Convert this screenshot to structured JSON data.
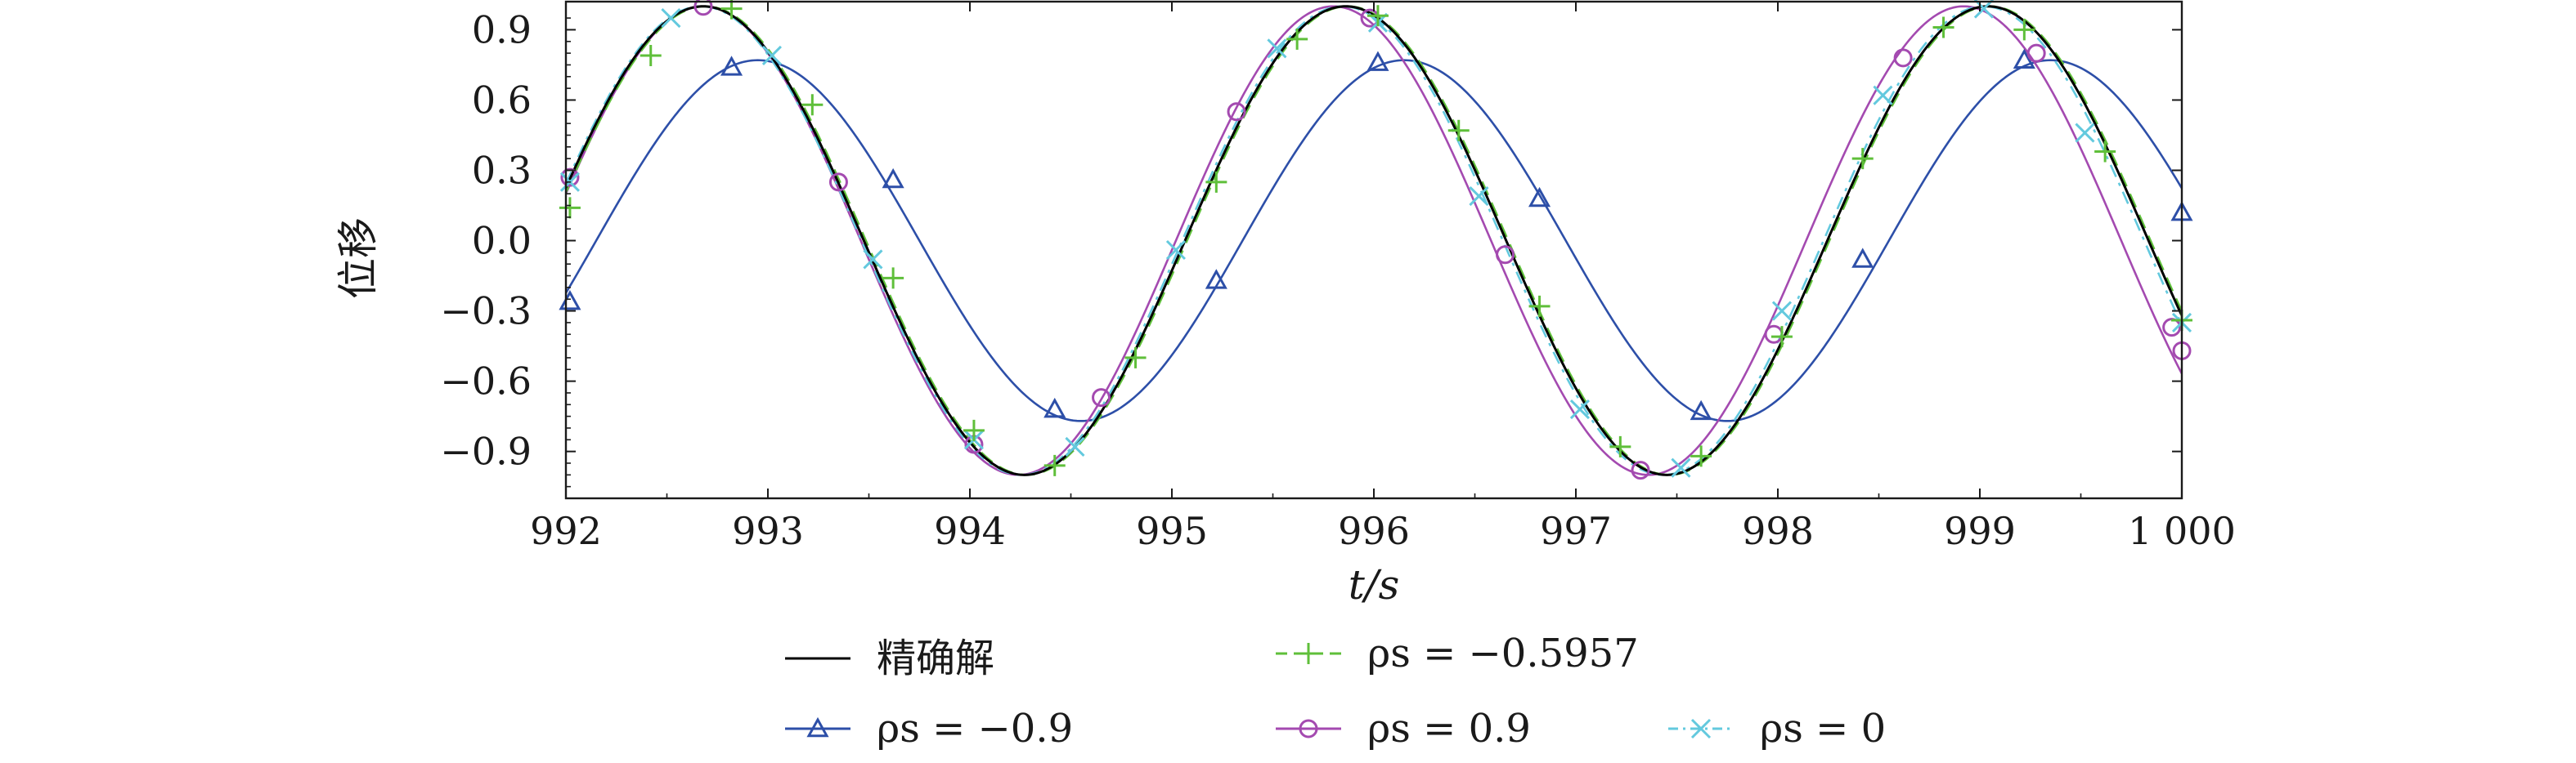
{
  "chart_data": {
    "type": "line",
    "xlabel": "t/s",
    "ylabel": "位移",
    "xlim": [
      992,
      1000
    ],
    "ylim": [
      -1.1,
      1.02
    ],
    "x_ticks": [
      992,
      993,
      994,
      995,
      996,
      997,
      998,
      999,
      1000
    ],
    "x_tick_labels": [
      "992",
      "993",
      "994",
      "995",
      "996",
      "997",
      "998",
      "999",
      "1 000"
    ],
    "y_ticks": [
      0.9,
      0.6,
      0.3,
      0.0,
      -0.3,
      -0.6,
      -0.9
    ],
    "y_tick_labels": [
      "0.9",
      "0.6",
      "0.3",
      "0.0",
      "−0.3",
      "−0.6",
      "−0.9"
    ],
    "grid": false,
    "legend_position": "bottom",
    "series": [
      {
        "name": "精确解",
        "color": "#000000",
        "line": "solid",
        "marker": "none",
        "model": {
          "amplitude": 1.0,
          "period": 3.18,
          "peak_t": 992.68
        },
        "points": [
          [
            992.0,
            0.28
          ],
          [
            992.68,
            1.0
          ],
          [
            993.47,
            0.0
          ],
          [
            994.27,
            -1.0
          ],
          [
            995.06,
            0.0
          ],
          [
            995.86,
            1.0
          ],
          [
            996.65,
            0.0
          ],
          [
            997.45,
            -1.0
          ],
          [
            998.24,
            0.0
          ],
          [
            999.04,
            1.0
          ],
          [
            999.83,
            0.0
          ],
          [
            1000.0,
            -0.32
          ]
        ]
      },
      {
        "name": "ρs = −0.5957",
        "color": "#5fbf3a",
        "line": "dashed",
        "marker": "plus",
        "model": {
          "amplitude": 1.0,
          "period": 3.18,
          "peak_t": 992.69
        },
        "marker_points": [
          [
            992.02,
            0.14
          ],
          [
            992.42,
            0.79
          ],
          [
            992.82,
            0.99
          ],
          [
            993.22,
            0.58
          ],
          [
            993.62,
            -0.16
          ],
          [
            994.02,
            -0.81
          ],
          [
            994.42,
            -0.96
          ],
          [
            994.82,
            -0.5
          ],
          [
            995.22,
            0.25
          ],
          [
            995.62,
            0.86
          ],
          [
            996.02,
            0.96
          ],
          [
            996.42,
            0.47
          ],
          [
            996.82,
            -0.28
          ],
          [
            997.22,
            -0.88
          ],
          [
            997.62,
            -0.92
          ],
          [
            998.02,
            -0.41
          ],
          [
            998.42,
            0.35
          ],
          [
            998.82,
            0.91
          ],
          [
            999.22,
            0.9
          ],
          [
            999.62,
            0.38
          ],
          [
            1000.0,
            -0.34
          ]
        ]
      },
      {
        "name": "ρs = −0.9",
        "color": "#2d4fa8",
        "line": "solid",
        "marker": "triangle",
        "model": {
          "amplitude": 0.77,
          "period": 3.2,
          "peak_t": 992.95
        },
        "marker_points": [
          [
            992.02,
            -0.26
          ],
          [
            992.82,
            0.74
          ],
          [
            993.62,
            0.26
          ],
          [
            994.42,
            -0.72
          ],
          [
            995.22,
            -0.17
          ],
          [
            996.02,
            0.76
          ],
          [
            996.82,
            0.18
          ],
          [
            997.62,
            -0.73
          ],
          [
            998.42,
            -0.08
          ],
          [
            999.22,
            0.77
          ],
          [
            1000.0,
            0.12
          ]
        ]
      },
      {
        "name": "ρs = 0.9",
        "color": "#a44ab0",
        "line": "solid",
        "marker": "circle",
        "model": {
          "amplitude": 1.0,
          "period": 3.12,
          "peak_t": 992.68
        },
        "marker_points": [
          [
            992.02,
            0.27
          ],
          [
            992.68,
            1.0
          ],
          [
            993.35,
            0.25
          ],
          [
            994.02,
            -0.87
          ],
          [
            994.65,
            -0.67
          ],
          [
            995.32,
            0.55
          ],
          [
            995.98,
            0.95
          ],
          [
            996.65,
            -0.06
          ],
          [
            997.32,
            -0.98
          ],
          [
            997.98,
            -0.4
          ],
          [
            998.62,
            0.78
          ],
          [
            999.28,
            0.8
          ],
          [
            999.95,
            -0.37
          ],
          [
            1000.0,
            -0.47
          ]
        ]
      },
      {
        "name": "ρs = 0",
        "color": "#63c9de",
        "line": "dashdot",
        "marker": "x",
        "model": {
          "amplitude": 1.0,
          "period": 3.175,
          "peak_t": 992.67
        },
        "marker_points": [
          [
            992.02,
            0.25
          ],
          [
            992.52,
            0.95
          ],
          [
            993.02,
            0.79
          ],
          [
            993.52,
            -0.08
          ],
          [
            994.02,
            -0.85
          ],
          [
            994.52,
            -0.88
          ],
          [
            995.02,
            -0.04
          ],
          [
            995.52,
            0.82
          ],
          [
            996.02,
            0.93
          ],
          [
            996.52,
            0.19
          ],
          [
            997.02,
            -0.72
          ],
          [
            997.52,
            -0.97
          ],
          [
            998.02,
            -0.3
          ],
          [
            998.52,
            0.62
          ],
          [
            999.02,
            0.99
          ],
          [
            999.52,
            0.46
          ],
          [
            1000.0,
            -0.35
          ]
        ]
      }
    ]
  }
}
